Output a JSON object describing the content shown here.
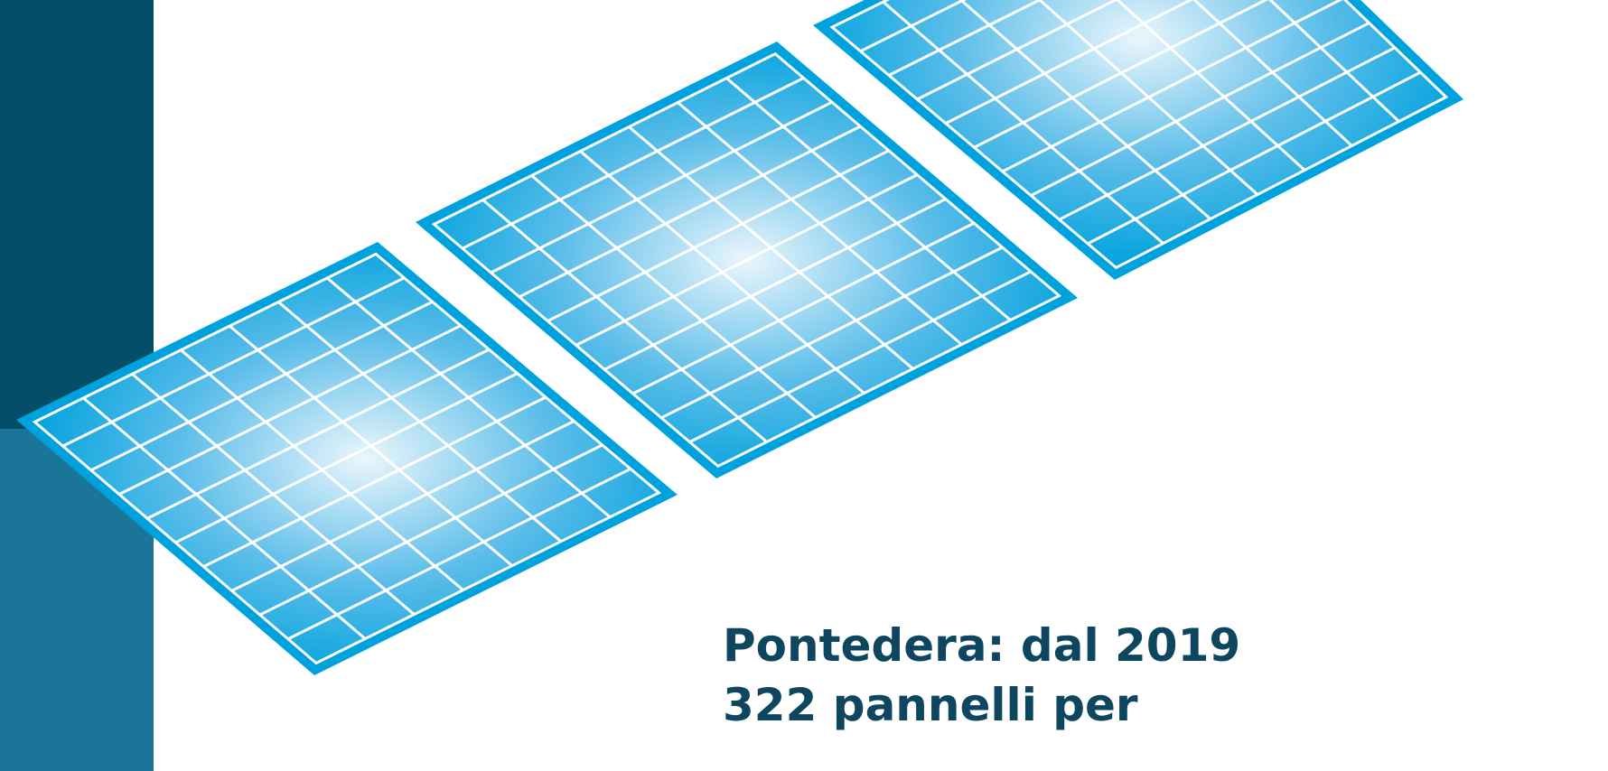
{
  "headline": {
    "line1": "Pontedera: dal 2019",
    "line2": "322 pannelli per",
    "line3": ""
  },
  "colors": {
    "band_top": "#044e69",
    "band_bottom": "#1b7598",
    "panel_frame": "#00a2dd",
    "panel_cell_grid": "#ffffff",
    "panel_highlight": "#e8f4fb",
    "headline_text": "#0e4660"
  },
  "panels": [
    {
      "name": "solar-panel-left"
    },
    {
      "name": "solar-panel-center"
    },
    {
      "name": "solar-panel-right"
    }
  ]
}
